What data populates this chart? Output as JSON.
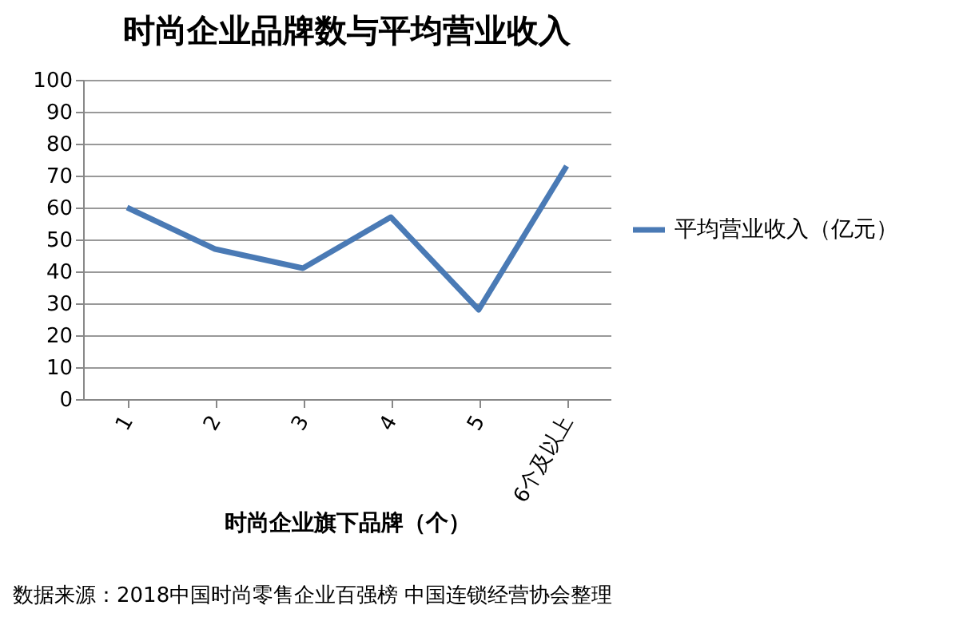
{
  "chart_data": {
    "type": "line",
    "title": "时尚企业品牌数与平均营业收入",
    "xlabel": "时尚企业旗下品牌（个）",
    "categories": [
      "1",
      "2",
      "3",
      "4",
      "5",
      "6个及以上"
    ],
    "series": [
      {
        "name": "平均营业收入（亿元）",
        "color": "#4a7ab5",
        "values": [
          60,
          47,
          41,
          57,
          28,
          73
        ]
      }
    ],
    "ylim": [
      0,
      100
    ],
    "yticks": [
      0,
      10,
      20,
      30,
      40,
      50,
      60,
      70,
      80,
      90,
      100
    ],
    "grid": "y",
    "legend": "right",
    "marker": "none",
    "line_style": "solid",
    "annotations": [
      "数据来源：2018中国时尚零售企业百强榜 中国连锁经营协会整理"
    ]
  }
}
